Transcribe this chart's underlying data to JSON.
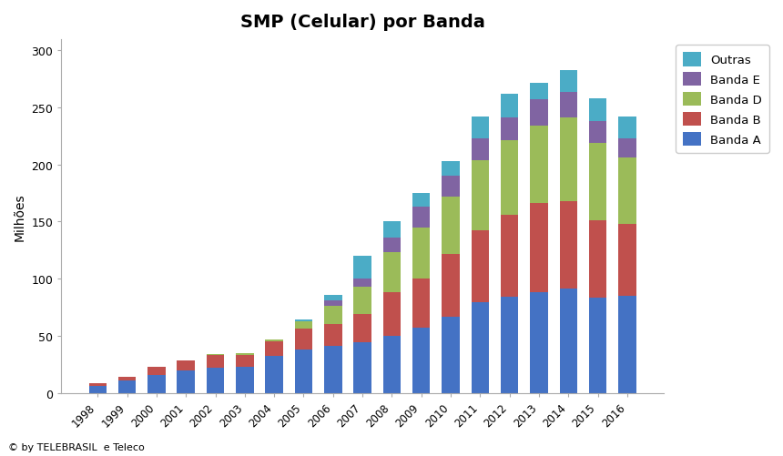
{
  "title": "SMP (Celular) por Banda",
  "ylabel": "Milhões",
  "years": [
    1998,
    1999,
    2000,
    2001,
    2002,
    2003,
    2004,
    2005,
    2006,
    2007,
    2008,
    2009,
    2010,
    2011,
    2012,
    2013,
    2014,
    2015,
    2016
  ],
  "banda_A": [
    6.1,
    10.8,
    15.7,
    19.3,
    22.2,
    22.5,
    32.7,
    38.0,
    41.0,
    44.0,
    50.0,
    57.0,
    67.0,
    79.0,
    84.0,
    88.0,
    91.0,
    83.0,
    85.0
  ],
  "banda_B": [
    1.9,
    3.2,
    7.3,
    8.7,
    11.3,
    10.5,
    12.3,
    18.0,
    19.0,
    25.0,
    38.0,
    43.0,
    55.0,
    63.0,
    72.0,
    78.0,
    77.0,
    68.0,
    63.0
  ],
  "banda_D": [
    0.0,
    0.0,
    0.0,
    0.0,
    0.5,
    1.5,
    1.5,
    6.5,
    16.0,
    24.0,
    35.0,
    45.0,
    50.0,
    62.0,
    65.0,
    68.0,
    73.0,
    68.0,
    58.0
  ],
  "banda_E": [
    0.0,
    0.0,
    0.0,
    0.0,
    0.0,
    0.0,
    0.0,
    0.0,
    5.0,
    7.0,
    13.0,
    18.0,
    18.0,
    19.0,
    20.0,
    23.0,
    23.0,
    19.0,
    17.0
  ],
  "outras": [
    0.0,
    0.0,
    0.0,
    0.0,
    0.0,
    0.0,
    0.0,
    2.0,
    5.0,
    20.0,
    14.0,
    12.0,
    13.0,
    19.0,
    21.0,
    15.0,
    19.0,
    20.0,
    19.0
  ],
  "color_A": "#4472C4",
  "color_B": "#C0504D",
  "color_D": "#9BBB59",
  "color_E": "#8064A2",
  "color_outras": "#4BACC6",
  "ylim": [
    0,
    310
  ],
  "yticks": [
    0,
    50,
    100,
    150,
    200,
    250,
    300
  ],
  "footnote": "© by TELEBRASIL  e Teleco",
  "bg_color": "#FFFFFF"
}
